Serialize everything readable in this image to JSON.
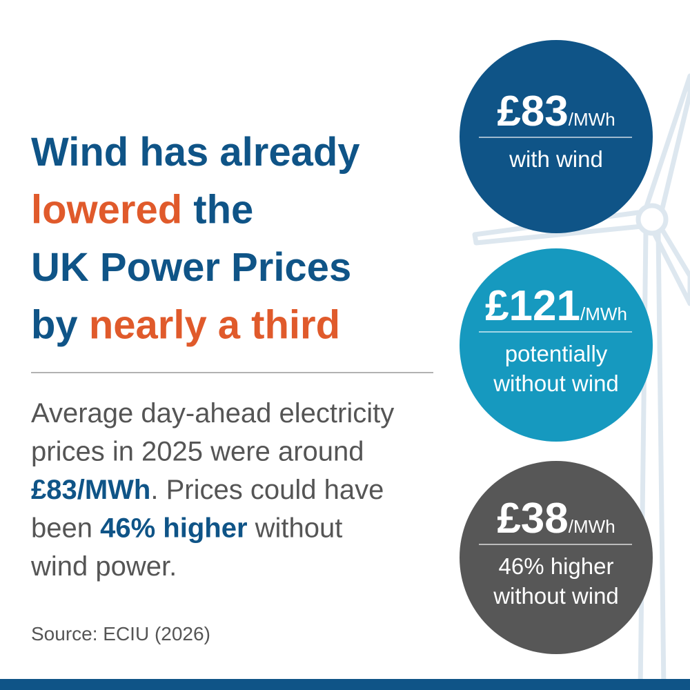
{
  "headline": {
    "color": "#0f5487",
    "highlight_color": "#e05a2b",
    "lines": [
      [
        {
          "text": "Wind has already",
          "highlight": false
        }
      ],
      [
        {
          "text": "lowered",
          "highlight": true
        },
        {
          "text": " the",
          "highlight": false
        }
      ],
      [
        {
          "text": "UK Power Prices",
          "highlight": false
        }
      ],
      [
        {
          "text": "by ",
          "highlight": false
        },
        {
          "text": "nearly a third",
          "highlight": true
        }
      ]
    ]
  },
  "body": {
    "color": "#555555",
    "bold_color": "#0f5487",
    "lines": [
      [
        {
          "text": "Average day-ahead electricity",
          "bold": false
        }
      ],
      [
        {
          "text": "prices in 2025 were around",
          "bold": false
        }
      ],
      [
        {
          "text": "£83/MWh",
          "bold": true
        },
        {
          "text": ". Prices could have",
          "bold": false
        }
      ],
      [
        {
          "text": "been ",
          "bold": false
        },
        {
          "text": "46% higher",
          "bold": true
        },
        {
          "text": " without",
          "bold": false
        }
      ],
      [
        {
          "text": "wind power.",
          "bold": false
        }
      ]
    ]
  },
  "source": "Source: ECIU (2026)",
  "circles": [
    {
      "amount": "£83",
      "unit": "/MWh",
      "caption": [
        "with wind"
      ],
      "color": "#0f5487"
    },
    {
      "amount": "£121",
      "unit": "/MWh",
      "caption": [
        "potentially",
        "without wind"
      ],
      "color": "#1699bf"
    },
    {
      "amount": "£38",
      "unit": "/MWh",
      "caption": [
        "46% higher",
        "without wind"
      ],
      "color": "#575757"
    }
  ]
}
